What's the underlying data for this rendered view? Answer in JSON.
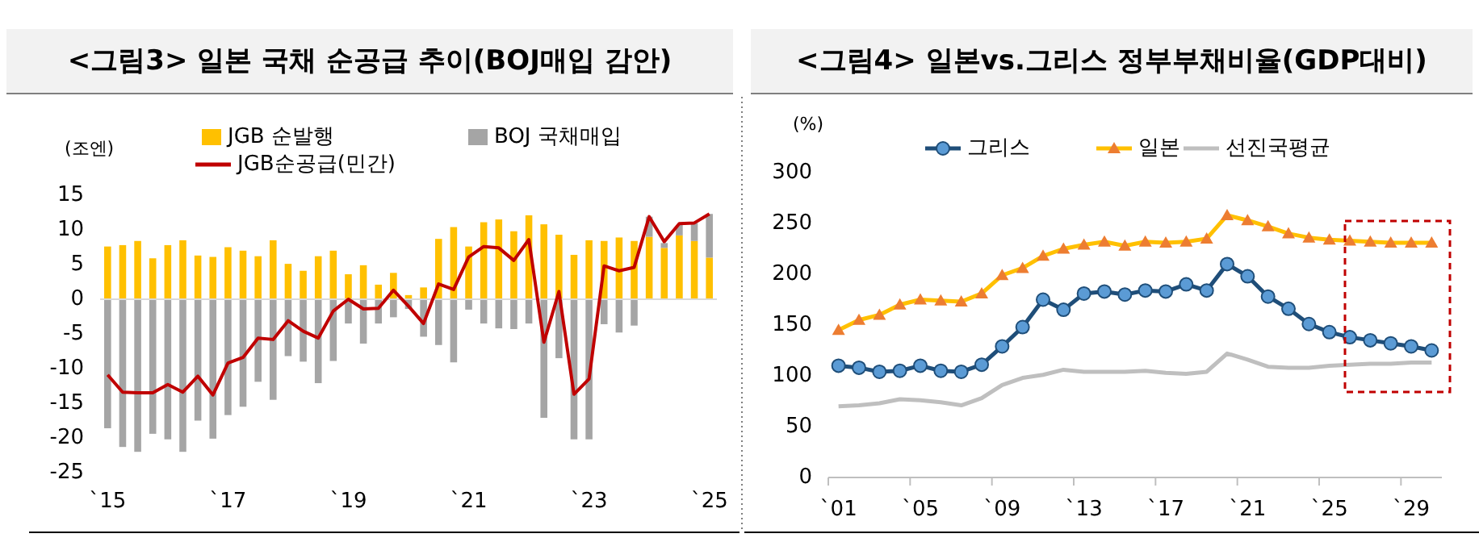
{
  "chart_data": [
    {
      "type": "bar",
      "title": "<그림3> 일본 국채 순공급 추이(BOJ매입 감안)",
      "ylabel": "(조엔)",
      "stacked": true,
      "legend": "top left",
      "grid": false,
      "categories": [
        "`15",
        null,
        null,
        null,
        null,
        null,
        null,
        null,
        "`17",
        null,
        null,
        null,
        null,
        null,
        null,
        null,
        "`19",
        null,
        null,
        null,
        null,
        null,
        null,
        null,
        "`21",
        null,
        null,
        null,
        null,
        null,
        null,
        null,
        "`23",
        null,
        null,
        null,
        null,
        null,
        null,
        null,
        "`25"
      ],
      "ylim": [
        -25,
        15
      ],
      "yticks": [
        15,
        10,
        5,
        0,
        -5,
        -10,
        -15,
        -20,
        -25
      ],
      "ref_lines": [
        {
          "axis": "y",
          "value": 0,
          "color": "#d9d9d9"
        }
      ],
      "series": [
        {
          "name": "JGB 순발행",
          "color": "#ffc000",
          "values": [
            7.6,
            7.8,
            8.4,
            5.9,
            7.8,
            8.5,
            6.3,
            6.1,
            7.5,
            7.0,
            6.2,
            8.5,
            5.1,
            4.1,
            6.2,
            7.0,
            3.6,
            4.9,
            2.1,
            3.8,
            0.6,
            1.7,
            8.7,
            10.4,
            7.6,
            11.1,
            11.5,
            9.8,
            12.1,
            10.8,
            9.3,
            6.4,
            8.5,
            8.4,
            8.9,
            8.4,
            9.0,
            7.4,
            9.2,
            8.4,
            6.0
          ]
        },
        {
          "name": "BOJ 국채매입",
          "color": "#a5a5a5",
          "values": [
            -18.6,
            -21.3,
            -22.0,
            -19.4,
            -20.2,
            -22.0,
            -17.5,
            -20.1,
            -16.7,
            -15.5,
            -11.9,
            -14.5,
            -8.2,
            -9.0,
            -12.1,
            -8.9,
            -3.5,
            -6.4,
            -3.5,
            -2.6,
            -1.4,
            -5.4,
            -6.6,
            -9.1,
            -1.5,
            -3.5,
            -4.2,
            -4.3,
            -3.5,
            -17.1,
            -8.5,
            -20.2,
            -20.2,
            -3.6,
            -4.8,
            -3.8,
            2.9,
            0.7,
            1.5,
            2.6,
            6.3
          ]
        },
        {
          "name": "JGB순공급(민간)",
          "type": "line",
          "color": "#c00000",
          "values": [
            -10.9,
            -13.4,
            -13.5,
            -13.5,
            -12.3,
            -13.4,
            -11.1,
            -13.8,
            -9.2,
            -8.4,
            -5.6,
            -5.8,
            -3.1,
            -4.6,
            -5.6,
            -1.7,
            0.0,
            -1.4,
            -1.3,
            1.3,
            -1.0,
            -3.5,
            2.2,
            1.4,
            6.1,
            7.6,
            7.4,
            5.6,
            8.6,
            -6.2,
            1.1,
            -13.7,
            -11.5,
            4.8,
            4.1,
            4.6,
            11.9,
            8.3,
            10.9,
            11.0,
            12.3
          ]
        }
      ]
    },
    {
      "type": "line",
      "title": "<그림4> 일본vs.그리스 정부부채비율(GDP대비)",
      "ylabel": "(%)",
      "legend": "top",
      "grid": false,
      "categories": [
        "`01",
        null,
        null,
        null,
        "`05",
        null,
        null,
        null,
        "`09",
        null,
        null,
        null,
        "`13",
        null,
        null,
        null,
        "`17",
        null,
        null,
        null,
        "`21",
        null,
        null,
        null,
        "`25",
        null,
        null,
        null,
        "`29",
        null
      ],
      "ylim": [
        0,
        300
      ],
      "yticks": [
        0,
        50,
        100,
        150,
        200,
        250,
        300
      ],
      "series": [
        {
          "name": "그리스",
          "color": "#1f4e79",
          "marker": "circle",
          "values": [
            110,
            108,
            104,
            105,
            110,
            105,
            104,
            111,
            129,
            148,
            175,
            165,
            181,
            183,
            180,
            184,
            183,
            190,
            184,
            210,
            198,
            178,
            166,
            151,
            143,
            138,
            135,
            132,
            129,
            125
          ]
        },
        {
          "name": "일본",
          "color": "#ffc000",
          "marker": "triangle",
          "values": [
            145,
            155,
            160,
            170,
            175,
            174,
            173,
            181,
            199,
            206,
            218,
            225,
            229,
            232,
            228,
            232,
            231,
            232,
            235,
            258,
            253,
            247,
            240,
            236,
            234,
            233,
            232,
            231,
            231,
            231
          ]
        },
        {
          "name": "선진국평균",
          "color": "#bfbfbf",
          "marker": "none",
          "values": [
            70,
            71,
            73,
            77,
            76,
            74,
            71,
            78,
            91,
            98,
            101,
            106,
            104,
            104,
            104,
            105,
            103,
            102,
            104,
            122,
            116,
            109,
            108,
            108,
            110,
            111,
            112,
            112,
            113,
            113
          ]
        }
      ]
    }
  ]
}
